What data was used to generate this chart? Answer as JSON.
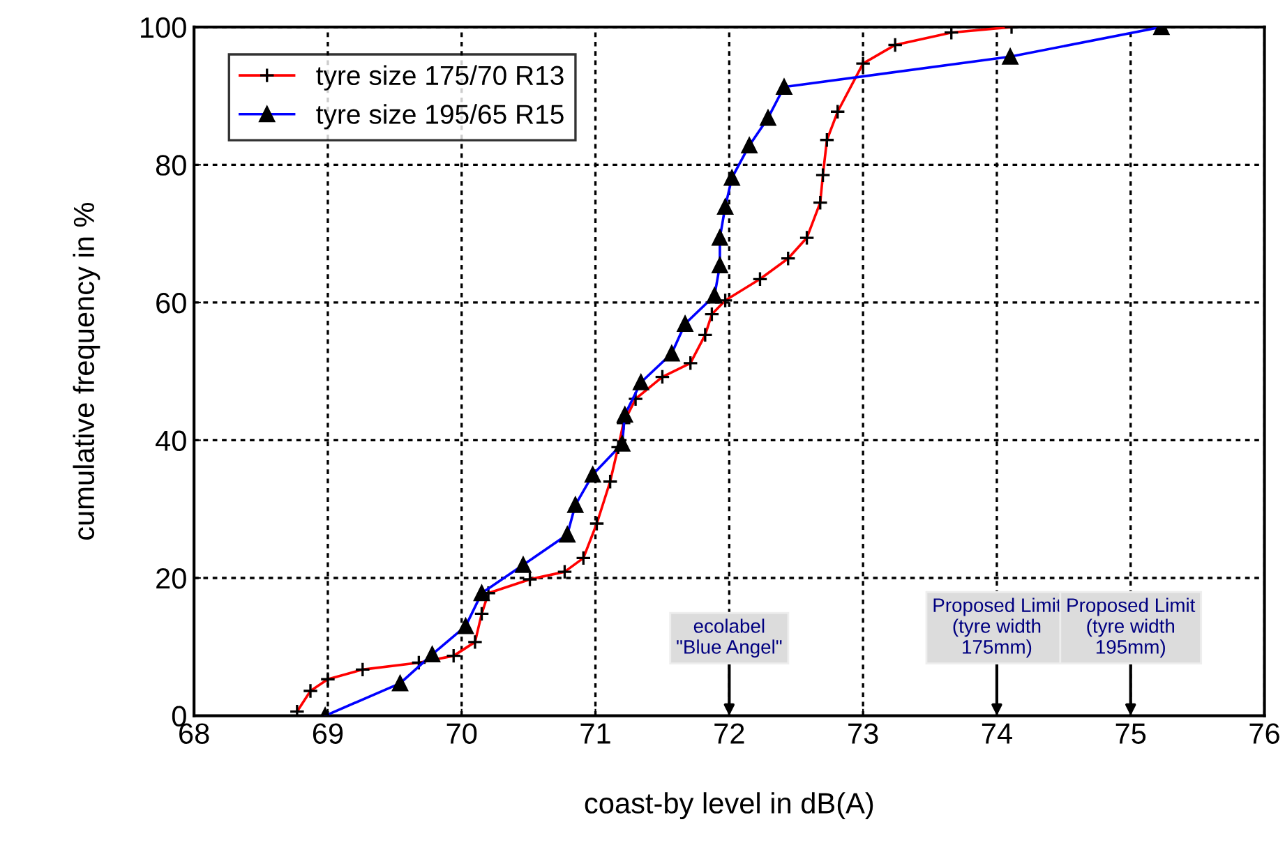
{
  "chart_data": {
    "type": "line",
    "xlabel": "coast-by level in dB(A)",
    "ylabel": "cumulative frequency in %",
    "xlim": [
      68,
      76
    ],
    "ylim": [
      0,
      100
    ],
    "xticks": [
      68,
      69,
      70,
      71,
      72,
      73,
      74,
      75,
      76
    ],
    "yticks": [
      0,
      20,
      40,
      60,
      80,
      100
    ],
    "grid": true,
    "legend": "top left",
    "line_style": "solid",
    "series": [
      {
        "name": "tyre size 175/70 R13",
        "color": "#ff0000",
        "marker": "cross",
        "x": [
          68.77,
          68.87,
          69.0,
          69.26,
          69.68,
          69.94,
          70.1,
          70.15,
          70.2,
          70.51,
          70.77,
          70.91,
          71.01,
          71.11,
          71.17,
          71.21,
          71.3,
          71.5,
          71.71,
          71.82,
          71.87,
          71.97,
          72.23,
          72.44,
          72.58,
          72.68,
          72.7,
          72.73,
          72.81,
          73.0,
          73.24,
          73.66,
          74.11
        ],
        "values": [
          0.6,
          3.6,
          5.3,
          6.7,
          7.7,
          8.7,
          10.7,
          14.8,
          17.8,
          19.8,
          20.9,
          22.9,
          27.9,
          34,
          39,
          42.5,
          46,
          49.2,
          51.2,
          55.3,
          58.3,
          60.3,
          63.4,
          66.4,
          69.4,
          74.5,
          78.5,
          83.6,
          87.7,
          94.7,
          97.4,
          99.2,
          100
        ]
      },
      {
        "name": "tyre size 195/65 R15",
        "color": "#0000ff",
        "marker": "triangle",
        "x": [
          68.98,
          69.54,
          69.78,
          70.03,
          70.15,
          70.46,
          70.79,
          70.85,
          70.98,
          71.2,
          71.22,
          71.34,
          71.57,
          71.67,
          71.89,
          71.93,
          71.93,
          71.97,
          72.02,
          72.15,
          72.29,
          72.41,
          74.1,
          75.23
        ],
        "values": [
          0,
          4.7,
          8.9,
          13,
          17.8,
          21.9,
          26.3,
          30.6,
          35,
          39.5,
          43.7,
          48.4,
          52.6,
          56.9,
          61,
          65.4,
          69.4,
          73.9,
          78.1,
          82.8,
          86.8,
          91.3,
          95.7,
          100
        ]
      }
    ],
    "annotations": [
      "ecolabel\n\"Blue Angel\"",
      "Proposed Limit\n(tyre width\n175mm)",
      "Proposed Limit\n(tyre width\n195mm)"
    ]
  }
}
